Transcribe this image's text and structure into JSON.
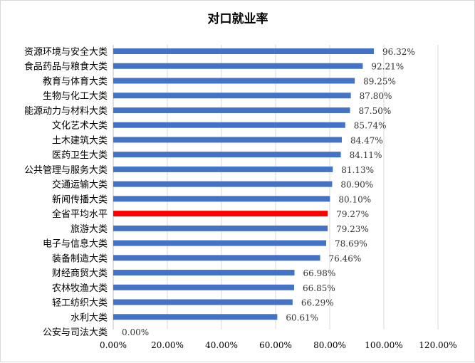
{
  "chart_data": {
    "type": "bar",
    "orientation": "horizontal",
    "title": "对口就业率",
    "categories": [
      "资源环境与安全大类",
      "食品药品与粮食大类",
      "教育与体育大类",
      "生物与化工大类",
      "能源动力与材料大类",
      "文化艺术大类",
      "土木建筑大类",
      "医药卫生大类",
      "公共管理与服务大类",
      "交通运输大类",
      "新闻传播大类",
      "全省平均水平",
      "旅游大类",
      "电子与信息大类",
      "装备制造大类",
      "财经商贸大类",
      "农林牧渔大类",
      "轻工纺织大类",
      "水利大类",
      "公安与司法大类"
    ],
    "values": [
      96.32,
      92.21,
      89.25,
      87.8,
      87.5,
      85.74,
      84.47,
      84.11,
      81.13,
      80.9,
      80.1,
      79.27,
      79.23,
      78.69,
      76.46,
      66.98,
      66.85,
      66.29,
      60.61,
      0.0
    ],
    "value_labels": [
      "96.32%",
      "92.21%",
      "89.25%",
      "87.80%",
      "87.50%",
      "85.74%",
      "84.47%",
      "84.11%",
      "81.13%",
      "80.90%",
      "80.10%",
      "79.27%",
      "79.23%",
      "78.69%",
      "76.46%",
      "66.98%",
      "66.85%",
      "66.29%",
      "60.61%",
      "0.00%"
    ],
    "highlight_index": 11,
    "xlim": [
      0,
      120
    ],
    "xticks": [
      0,
      20,
      40,
      60,
      80,
      100,
      120
    ],
    "xtick_labels": [
      "0.00%",
      "20.00%",
      "40.00%",
      "60.00%",
      "80.00%",
      "100.00%",
      "120.00%"
    ],
    "grid": true,
    "legend": "none",
    "colors": {
      "bar": "#4472c4",
      "highlight": "#ff0000",
      "grid": "#d9d9d9"
    }
  }
}
